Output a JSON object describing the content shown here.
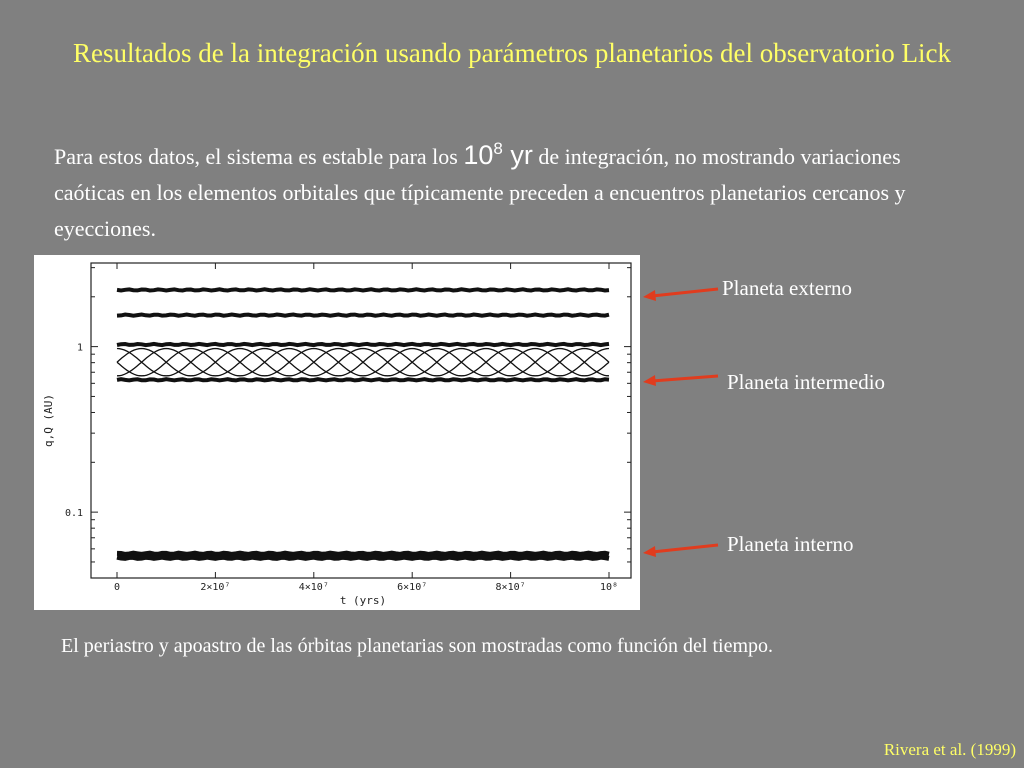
{
  "slide": {
    "title": "Resultados de la integración usando parámetros planetarios del observatorio Lick",
    "intro_part1": "Para estos datos, el sistema es estable para los ",
    "intro_base": "10",
    "intro_exp": "8",
    "intro_unit": " yr",
    "intro_part2": " de integración, no mostrando variaciones caóticas en los elementos orbitales que típicamente preceden a encuentros planetarios cercanos y eyecciones.",
    "caption": "El periastro y apoastro de las órbitas planetarias son mostradas como función del tiempo.",
    "credit": "Rivera et al. (1999)",
    "labels": {
      "outer": "Planeta externo",
      "middle": "Planeta intermedio",
      "inner": "Planeta interno"
    },
    "colors": {
      "title": "#ffff66",
      "background": "#808080",
      "arrow": "#e03c1e",
      "text": "#ffffff"
    }
  },
  "chart_data": {
    "type": "line",
    "xlabel": "t (yrs)",
    "ylabel": "q,Q (AU)",
    "x_scale": "linear",
    "y_scale": "log",
    "xlim": [
      0,
      100000000
    ],
    "ylim": [
      0.04,
      3.2
    ],
    "x_tick_values": [
      0,
      20000000,
      40000000,
      60000000,
      80000000,
      100000000
    ],
    "x_tick_labels": [
      "0",
      "2×10⁷",
      "4×10⁷",
      "6×10⁷",
      "8×10⁷",
      "10⁸"
    ],
    "y_tick_values": [
      0.1,
      1
    ],
    "y_tick_labels": [
      "0.1",
      "1"
    ],
    "x_range": [
      0,
      100000000
    ],
    "series": [
      {
        "values": [
          2.2,
          2.2
        ]
      },
      {
        "values": [
          1.55,
          1.55
        ]
      },
      {
        "values": [
          1.03,
          1.03
        ]
      },
      {
        "values": [
          0.63,
          0.63
        ]
      },
      {
        "values": [
          0.056,
          0.056
        ]
      },
      {
        "values": [
          0.053,
          0.053
        ]
      }
    ]
  }
}
